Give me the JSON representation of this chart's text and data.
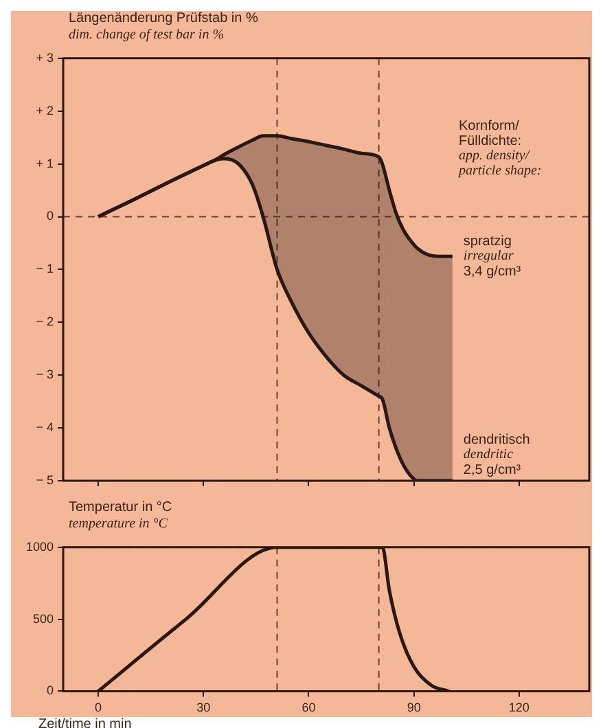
{
  "chart_data": [
    {
      "type": "line",
      "ylabel": "Längenänderung Prüfstab in %\ndim. change of test bar in %",
      "legend_title": "Kornform/\nFülldichte:\napp. density/\nparticle shape:",
      "x": [
        0,
        10,
        20,
        30,
        34,
        36,
        40,
        44,
        47,
        51,
        55,
        60,
        65,
        70,
        75,
        80,
        81,
        83,
        85,
        87,
        89,
        91,
        94,
        97,
        101
      ],
      "xlim": [
        -10,
        140
      ],
      "xticks": [
        0,
        30,
        60,
        90,
        120
      ],
      "ylim": [
        -5,
        3
      ],
      "yticks": [
        {
          "value": 3,
          "label": "+ 3"
        },
        {
          "value": 2,
          "label": "+ 2"
        },
        {
          "value": 1,
          "label": "+ 1"
        },
        0,
        {
          "value": -1,
          "label": "− 1"
        },
        {
          "value": -2,
          "label": "− 2"
        },
        {
          "value": -3,
          "label": "− 3"
        },
        {
          "value": -4,
          "label": "− 4"
        },
        {
          "value": -5,
          "label": "− 5"
        }
      ],
      "tick_labels": "y",
      "series": [
        {
          "name": "spratzig\nirregular\n3,4 g/cm³",
          "type": "line",
          "color": "#2a1812",
          "values": [
            0,
            0.32,
            0.65,
            0.97,
            1.1,
            1.18,
            1.32,
            1.45,
            1.53,
            1.53,
            1.48,
            1.42,
            1.35,
            1.28,
            1.2,
            1.13,
            1.0,
            0.5,
            0.05,
            -0.25,
            -0.45,
            -0.6,
            -0.72,
            -0.75,
            -0.75
          ],
          "upper": [
            0,
            0.32,
            0.65,
            0.97,
            1.1,
            1.18,
            1.32,
            1.45,
            1.53,
            1.53,
            1.48,
            1.42,
            1.35,
            1.28,
            1.2,
            1.13,
            1.0,
            0.5,
            0.05,
            -0.25,
            -0.45,
            -0.6,
            -0.72,
            -0.75,
            -0.75
          ],
          "lower": [
            0,
            0.32,
            0.65,
            0.97,
            1.08,
            1.1,
            1.0,
            0.6,
            0,
            -1,
            -1.6,
            -2.2,
            -2.65,
            -3.0,
            -3.2,
            -3.4,
            -3.45,
            -4.0,
            -4.4,
            -4.7,
            -4.9,
            -5,
            -5,
            -5,
            -5
          ]
        },
        {
          "name": "dendritisch\ndendritic\n2,5 g/cm³",
          "type": "line",
          "color": "#2a1812",
          "values": [
            0,
            0.32,
            0.65,
            0.97,
            1.08,
            1.1,
            1.0,
            0.6,
            0,
            -1,
            -1.6,
            -2.2,
            -2.65,
            -3.0,
            -3.2,
            -3.4,
            -3.45,
            -4.0,
            -4.4,
            -4.7,
            -4.9,
            -5,
            -5,
            -5,
            -5
          ]
        }
      ],
      "ref_lines": [
        {
          "axis": "y",
          "value": 0,
          "line_style": "dashed",
          "color": "#6a4030"
        },
        {
          "axis": "x",
          "value": 51,
          "line_style": "dashed",
          "color": "#6a4030"
        },
        {
          "axis": "x",
          "value": 80,
          "line_style": "dashed",
          "color": "#6a4030"
        }
      ]
    },
    {
      "type": "line",
      "ylabel": "Temperatur in °C\ntemperature in °C",
      "xlabel": "Zeit/time in min",
      "xlim": [
        -10,
        140
      ],
      "xticks": [
        0,
        30,
        60,
        90,
        120
      ],
      "ylim": [
        0,
        1000
      ],
      "yticks": [
        0,
        500,
        1000
      ],
      "series": [
        {
          "type": "line",
          "color": "#2a1812",
          "x": [
            0,
            25,
            51,
            66,
            81,
            83,
            86,
            90,
            95,
            100
          ],
          "values": [
            0,
            500,
            1000,
            1000,
            1000,
            700,
            400,
            170,
            40,
            0
          ]
        }
      ],
      "ref_lines": [
        {
          "axis": "y",
          "value": 1000,
          "line_style": "dashed",
          "color": "#6a4030"
        },
        {
          "axis": "x",
          "value": 51,
          "line_style": "dashed",
          "color": "#6a4030"
        },
        {
          "axis": "x",
          "value": 80,
          "line_style": "dashed",
          "color": "#6a4030"
        }
      ]
    }
  ]
}
